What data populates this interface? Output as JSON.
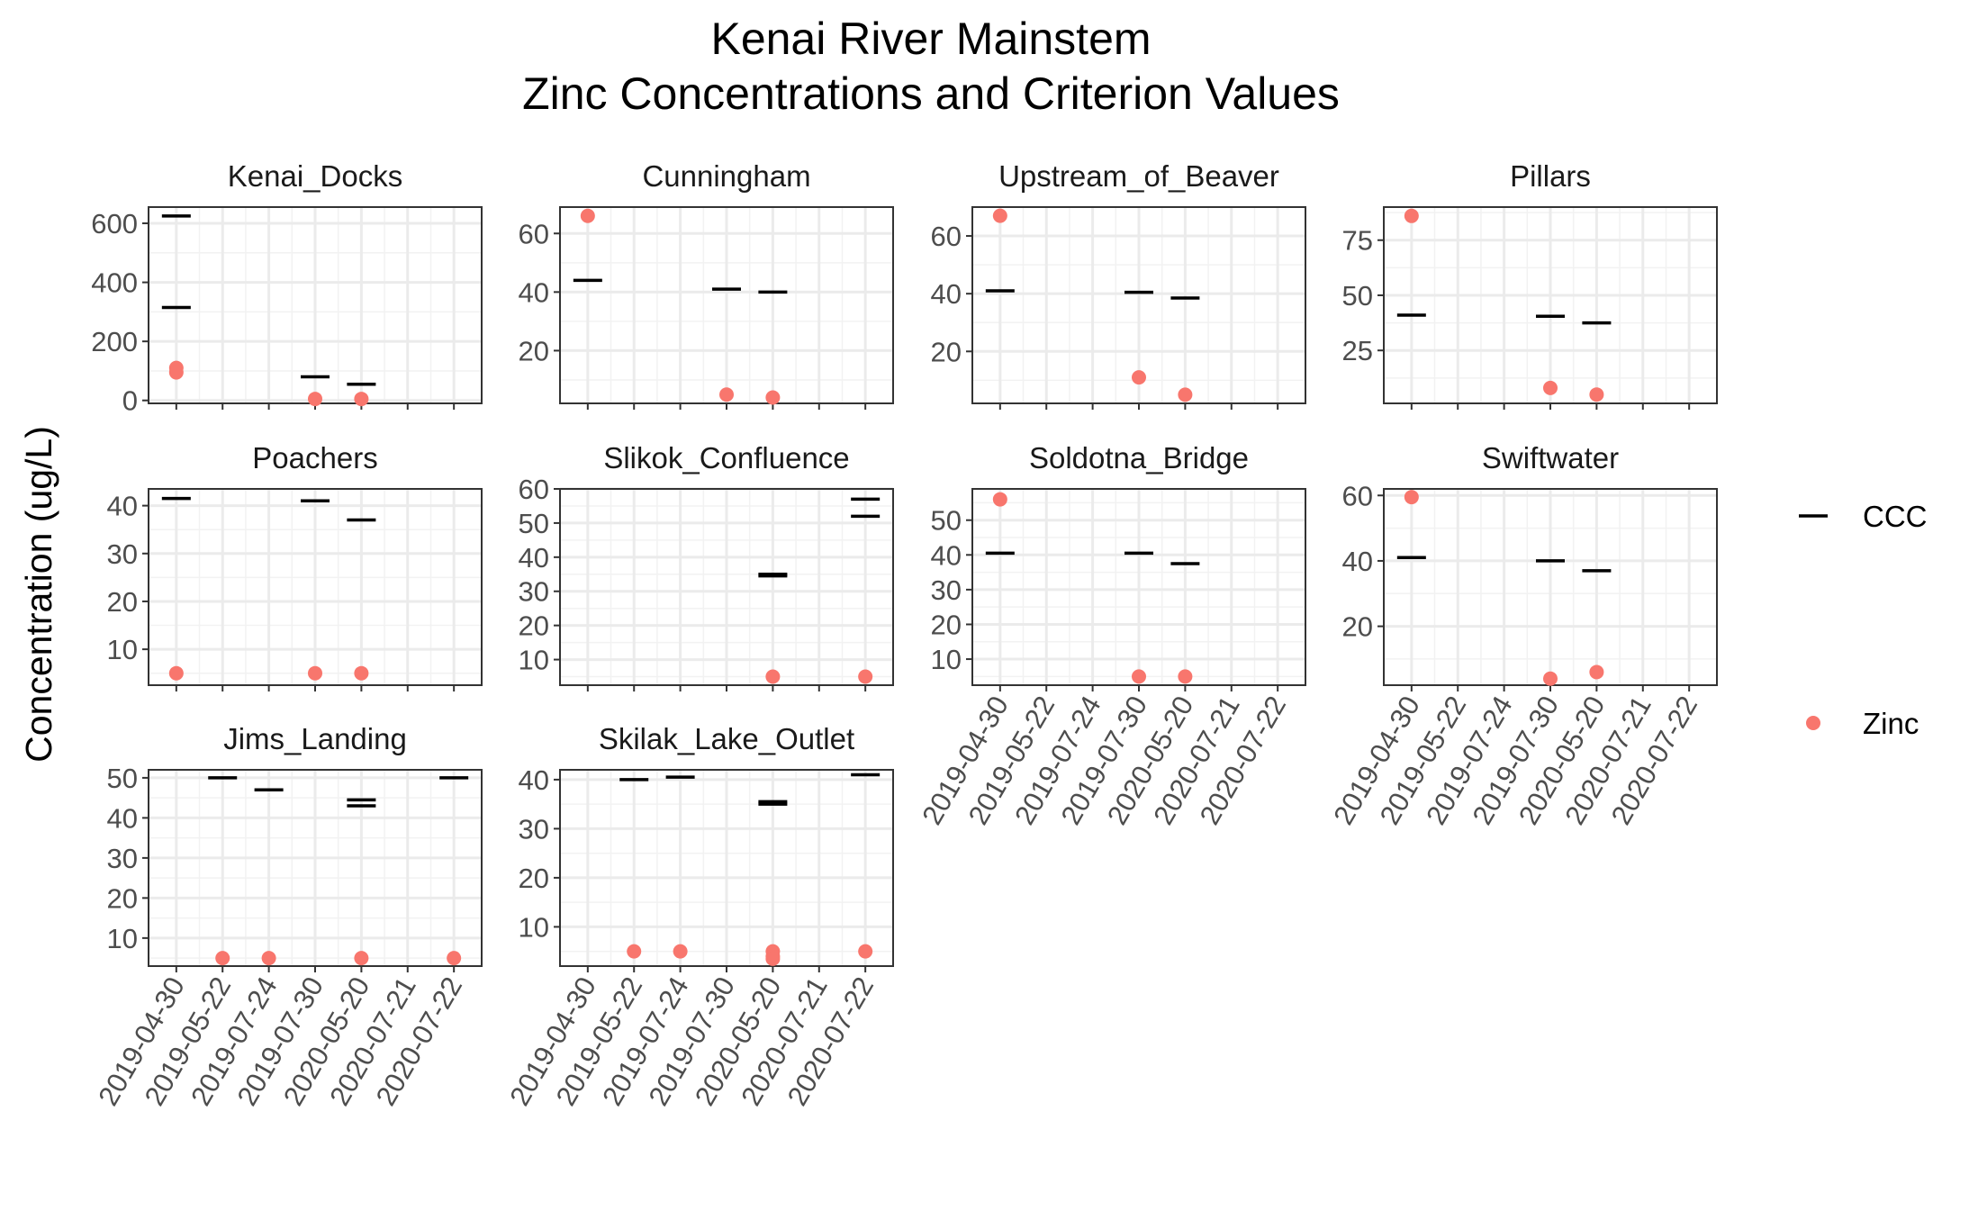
{
  "chart_data": {
    "type": "scatter",
    "title": "Kenai River Mainstem",
    "subtitle": "Zinc Concentrations and Criterion Values",
    "xlabel": "",
    "ylabel": "Concentration (ug/L)",
    "x_categories": [
      "2019-04-30",
      "2019-05-22",
      "2019-07-24",
      "2019-07-30",
      "2020-05-20",
      "2020-07-21",
      "2020-07-22"
    ],
    "grid": true,
    "legend": {
      "placement": "right",
      "entries": [
        {
          "label": "CCC",
          "marker": "dash",
          "color": "#000000"
        },
        {
          "label": "Zinc",
          "marker": "point",
          "color": "#F8766D"
        }
      ]
    },
    "panels": [
      {
        "name": "Kenai_Docks",
        "ylim": [
          -10,
          655
        ],
        "yticks": [
          0,
          200,
          400,
          600
        ],
        "series": [
          {
            "name": "CCC",
            "points": [
              [
                "2019-04-30",
                625
              ],
              [
                "2019-04-30",
                315
              ],
              [
                "2019-07-30",
                80
              ],
              [
                "2020-05-20",
                55
              ]
            ]
          },
          {
            "name": "Zinc",
            "points": [
              [
                "2019-04-30",
                110
              ],
              [
                "2019-04-30",
                95
              ],
              [
                "2019-07-30",
                5
              ],
              [
                "2020-05-20",
                5
              ]
            ]
          }
        ]
      },
      {
        "name": "Cunningham",
        "ylim": [
          2,
          69
        ],
        "yticks": [
          20,
          40,
          60
        ],
        "series": [
          {
            "name": "CCC",
            "points": [
              [
                "2019-04-30",
                44
              ],
              [
                "2019-07-30",
                41
              ],
              [
                "2020-05-20",
                40
              ]
            ]
          },
          {
            "name": "Zinc",
            "points": [
              [
                "2019-04-30",
                66
              ],
              [
                "2019-07-30",
                5
              ],
              [
                "2020-05-20",
                4
              ]
            ]
          }
        ]
      },
      {
        "name": "Upstream_of_Beaver",
        "ylim": [
          2,
          70
        ],
        "yticks": [
          20,
          40,
          60
        ],
        "series": [
          {
            "name": "CCC",
            "points": [
              [
                "2019-04-30",
                41
              ],
              [
                "2019-07-30",
                40.5
              ],
              [
                "2020-05-20",
                38.5
              ]
            ]
          },
          {
            "name": "Zinc",
            "points": [
              [
                "2019-04-30",
                67
              ],
              [
                "2019-07-30",
                11
              ],
              [
                "2020-05-20",
                5
              ]
            ]
          }
        ]
      },
      {
        "name": "Pillars",
        "ylim": [
          1,
          90
        ],
        "yticks": [
          25,
          50,
          75
        ],
        "series": [
          {
            "name": "CCC",
            "points": [
              [
                "2019-04-30",
                41
              ],
              [
                "2019-07-30",
                40.5
              ],
              [
                "2020-05-20",
                37.5
              ]
            ]
          },
          {
            "name": "Zinc",
            "points": [
              [
                "2019-04-30",
                86
              ],
              [
                "2019-07-30",
                8
              ],
              [
                "2020-05-20",
                5
              ]
            ]
          }
        ]
      },
      {
        "name": "Poachers",
        "ylim": [
          2.5,
          43.5
        ],
        "yticks": [
          10,
          20,
          30,
          40
        ],
        "series": [
          {
            "name": "CCC",
            "points": [
              [
                "2019-04-30",
                41.5
              ],
              [
                "2019-07-30",
                41
              ],
              [
                "2020-05-20",
                37
              ]
            ]
          },
          {
            "name": "Zinc",
            "points": [
              [
                "2019-04-30",
                5
              ],
              [
                "2019-07-30",
                5
              ],
              [
                "2020-05-20",
                5
              ]
            ]
          }
        ]
      },
      {
        "name": "Slikok_Confluence",
        "ylim": [
          2.5,
          60
        ],
        "yticks": [
          10,
          20,
          30,
          40,
          50,
          60
        ],
        "series": [
          {
            "name": "CCC",
            "points": [
              [
                "2020-05-20",
                35
              ],
              [
                "2020-05-20",
                34.5
              ],
              [
                "2020-07-22",
                57
              ],
              [
                "2020-07-22",
                52
              ]
            ]
          },
          {
            "name": "Zinc",
            "points": [
              [
                "2020-05-20",
                5
              ],
              [
                "2020-07-22",
                5
              ]
            ]
          }
        ]
      },
      {
        "name": "Soldotna_Bridge",
        "ylim": [
          2.5,
          59
        ],
        "yticks": [
          10,
          20,
          30,
          40,
          50
        ],
        "series": [
          {
            "name": "CCC",
            "points": [
              [
                "2019-04-30",
                40.5
              ],
              [
                "2019-07-30",
                40.5
              ],
              [
                "2020-05-20",
                37.5
              ]
            ]
          },
          {
            "name": "Zinc",
            "points": [
              [
                "2019-04-30",
                56
              ],
              [
                "2019-07-30",
                5
              ],
              [
                "2020-05-20",
                5
              ]
            ]
          }
        ]
      },
      {
        "name": "Swiftwater",
        "ylim": [
          2,
          62
        ],
        "yticks": [
          20,
          40,
          60
        ],
        "series": [
          {
            "name": "CCC",
            "points": [
              [
                "2019-04-30",
                41
              ],
              [
                "2019-07-30",
                40
              ],
              [
                "2020-05-20",
                37
              ]
            ]
          },
          {
            "name": "Zinc",
            "points": [
              [
                "2019-04-30",
                59.5
              ],
              [
                "2019-07-30",
                4
              ],
              [
                "2020-05-20",
                6
              ]
            ]
          }
        ]
      },
      {
        "name": "Jims_Landing",
        "ylim": [
          3,
          52
        ],
        "yticks": [
          10,
          20,
          30,
          40,
          50
        ],
        "series": [
          {
            "name": "CCC",
            "points": [
              [
                "2019-05-22",
                50
              ],
              [
                "2019-07-24",
                47
              ],
              [
                "2020-05-20",
                44.5
              ],
              [
                "2020-05-20",
                43
              ],
              [
                "2020-07-22",
                50
              ]
            ]
          },
          {
            "name": "Zinc",
            "points": [
              [
                "2019-05-22",
                5
              ],
              [
                "2019-07-24",
                5
              ],
              [
                "2020-05-20",
                5
              ],
              [
                "2020-07-22",
                5
              ]
            ]
          }
        ]
      },
      {
        "name": "Skilak_Lake_Outlet",
        "ylim": [
          2,
          42
        ],
        "yticks": [
          10,
          20,
          30,
          40
        ],
        "series": [
          {
            "name": "CCC",
            "points": [
              [
                "2019-05-22",
                40
              ],
              [
                "2019-07-24",
                40.5
              ],
              [
                "2020-05-20",
                35.5
              ],
              [
                "2020-05-20",
                35
              ],
              [
                "2020-07-22",
                41
              ]
            ]
          },
          {
            "name": "Zinc",
            "points": [
              [
                "2019-05-22",
                5
              ],
              [
                "2019-07-24",
                5
              ],
              [
                "2020-05-20",
                5
              ],
              [
                "2020-05-20",
                4
              ],
              [
                "2020-05-20",
                3.5
              ],
              [
                "2020-07-22",
                5
              ]
            ]
          }
        ]
      }
    ]
  }
}
